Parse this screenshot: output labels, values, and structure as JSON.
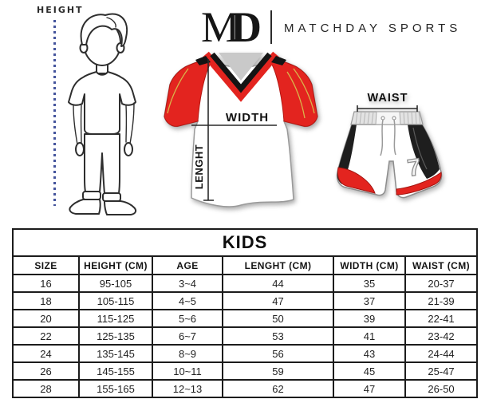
{
  "brand": {
    "logo_m": "M",
    "logo_d": "D",
    "name": "MATCHDAY SPORTS"
  },
  "diagram": {
    "height_label": "HEIGHT",
    "width_label": "WIDTH",
    "length_label": "LENGHT",
    "waist_label": "WAIST",
    "shorts_number": "7"
  },
  "colors": {
    "jersey_red": "#e3241f",
    "jersey_dark_red": "#b31712",
    "piping_yellow": "#d9b44a",
    "panel_black": "#1e1e1e",
    "collar_gray": "#c9c9c9",
    "measure_blue": "#44549c"
  },
  "size_table": {
    "title": "KIDS",
    "columns": [
      "SIZE",
      "HEIGHT (CM)",
      "AGE",
      "LENGHT (CM)",
      "WIDTH (CM)",
      "WAIST (CM)"
    ],
    "rows": [
      [
        "16",
        "95-105",
        "3~4",
        "44",
        "35",
        "20-37"
      ],
      [
        "18",
        "105-115",
        "4~5",
        "47",
        "37",
        "21-39"
      ],
      [
        "20",
        "115-125",
        "5~6",
        "50",
        "39",
        "22-41"
      ],
      [
        "22",
        "125-135",
        "6~7",
        "53",
        "41",
        "23-42"
      ],
      [
        "24",
        "135-145",
        "8~9",
        "56",
        "43",
        "24-44"
      ],
      [
        "26",
        "145-155",
        "10~11",
        "59",
        "45",
        "25-47"
      ],
      [
        "28",
        "155-165",
        "12~13",
        "62",
        "47",
        "26-50"
      ]
    ]
  }
}
